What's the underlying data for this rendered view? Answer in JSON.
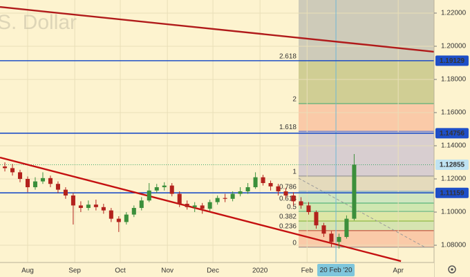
{
  "chart_data": {
    "type": "candlestick",
    "title": "S. Dollar",
    "xlim": [
      -18.2,
      267.6
    ],
    "ylim": [
      1.0696,
      1.2279
    ],
    "xticks": [
      {
        "value": 0,
        "label": "Aug"
      },
      {
        "value": 31,
        "label": "Sep"
      },
      {
        "value": 61,
        "label": "Oct"
      },
      {
        "value": 92,
        "label": "Nov"
      },
      {
        "value": 122,
        "label": "Dec"
      },
      {
        "value": 153,
        "label": "2020"
      },
      {
        "value": 184,
        "label": "Feb"
      },
      {
        "value": 244,
        "label": "Apr"
      }
    ],
    "yticks": [
      {
        "value": 1.22,
        "label": "1.22000"
      },
      {
        "value": 1.2,
        "label": "1.20000"
      },
      {
        "value": 1.18,
        "label": "1.18000"
      },
      {
        "value": 1.16,
        "label": "1.16000"
      },
      {
        "value": 1.14,
        "label": "1.14000"
      },
      {
        "value": 1.12,
        "label": "1.12000"
      },
      {
        "value": 1.1,
        "label": "1.10000"
      },
      {
        "value": 1.08,
        "label": "1.08000"
      }
    ],
    "up_color": "#3b8f3b",
    "down_color": "#b3221d",
    "x": [
      -15,
      -10,
      -5,
      0,
      5,
      10,
      15,
      20,
      25,
      30,
      35,
      40,
      45,
      50,
      55,
      60,
      65,
      70,
      75,
      80,
      85,
      90,
      95,
      100,
      105,
      110,
      115,
      120,
      125,
      130,
      135,
      140,
      145,
      150,
      155,
      160,
      165,
      170,
      175,
      180,
      185,
      190,
      195,
      200,
      205,
      210,
      215
    ],
    "open": [
      1.1275,
      1.1265,
      1.124,
      1.12,
      1.115,
      1.1185,
      1.1205,
      1.117,
      1.1135,
      1.11,
      1.104,
      1.1025,
      1.1045,
      1.103,
      1.101,
      1.096,
      1.094,
      1.0985,
      1.1025,
      1.107,
      1.113,
      1.115,
      1.116,
      1.111,
      1.105,
      1.103,
      1.104,
      1.102,
      1.106,
      1.1085,
      1.108,
      1.111,
      1.1125,
      1.115,
      1.121,
      1.1175,
      1.1155,
      1.1125,
      1.11,
      1.1065,
      1.104,
      1.1,
      1.092,
      1.087,
      1.082,
      1.085,
      1.096
    ],
    "high": [
      1.13,
      1.129,
      1.1255,
      1.1215,
      1.121,
      1.124,
      1.122,
      1.1185,
      1.115,
      1.1115,
      1.1065,
      1.107,
      1.1075,
      1.105,
      1.1025,
      1.0975,
      1.1,
      1.104,
      1.109,
      1.1175,
      1.117,
      1.118,
      1.1175,
      1.1125,
      1.107,
      1.106,
      1.1055,
      1.1075,
      1.11,
      1.111,
      1.1125,
      1.115,
      1.1175,
      1.124,
      1.1225,
      1.119,
      1.117,
      1.1145,
      1.112,
      1.109,
      1.106,
      1.101,
      1.0935,
      1.0885,
      1.087,
      1.098,
      1.135
    ],
    "low": [
      1.1245,
      1.122,
      1.118,
      1.112,
      1.1135,
      1.117,
      1.115,
      1.1115,
      1.108,
      1.0925,
      1.1,
      1.101,
      1.101,
      1.099,
      1.094,
      1.088,
      1.0925,
      1.097,
      1.101,
      1.106,
      1.1115,
      1.113,
      1.1095,
      1.103,
      1.1015,
      1.1,
      1.099,
      1.1005,
      1.1045,
      1.106,
      1.1065,
      1.1095,
      1.111,
      1.114,
      1.116,
      1.113,
      1.11,
      1.1085,
      1.104,
      1.102,
      1.0985,
      1.09,
      1.085,
      1.079,
      1.078,
      1.084,
      1.095
    ],
    "close": [
      1.1265,
      1.124,
      1.12,
      1.115,
      1.1185,
      1.1205,
      1.117,
      1.1135,
      1.11,
      1.104,
      1.1025,
      1.1045,
      1.103,
      1.101,
      1.096,
      1.094,
      1.0985,
      1.1025,
      1.107,
      1.113,
      1.115,
      1.116,
      1.111,
      1.105,
      1.103,
      1.104,
      1.102,
      1.106,
      1.1085,
      1.108,
      1.111,
      1.1125,
      1.115,
      1.121,
      1.1175,
      1.1155,
      1.1125,
      1.11,
      1.1065,
      1.104,
      1.1,
      1.092,
      1.087,
      1.082,
      1.085,
      1.096,
      1.1286
    ],
    "trendlines": [
      {
        "color": "#b01a1a",
        "x": [
          -18.2,
          267.6
        ],
        "y": [
          1.2237,
          1.1967
        ]
      },
      {
        "color": "#c41010",
        "x": [
          -18.2,
          245.8
        ],
        "y": [
          1.1329,
          1.0704
        ]
      }
    ],
    "hlines": [
      1.19129,
      1.14756,
      1.11159
    ],
    "hline_color": "#1e4fc7",
    "last_price": 1.12855,
    "last_price_color": "#3aa86b",
    "crosshair": {
      "x": 203,
      "label": "20 Feb '20"
    },
    "fib": {
      "x_start": 178.4,
      "top_fill": "rgba(130,140,150,0.38)",
      "levels": [
        {
          "level": 2.618,
          "price": 1.1913,
          "color": "#b0413e",
          "fill": "rgba(140,150,60,0.40)"
        },
        {
          "level": 2,
          "price": 1.1654,
          "color": "#3aa86b",
          "fill": "rgba(245,140,110,0.40)"
        },
        {
          "level": 1.618,
          "price": 1.1487,
          "color": "#3d5fd0",
          "fill": "rgba(160,150,210,0.40)"
        },
        {
          "level": 1,
          "price": 1.1217,
          "color": "#8a8a8a",
          "fill": "rgba(190,180,160,0.40)"
        },
        {
          "level": 0.786,
          "price": 1.1125,
          "color": "#6fa0c8",
          "fill": "rgba(140,210,170,0.40)"
        },
        {
          "level": 0.618,
          "price": 1.1054,
          "color": "#3aa86b",
          "fill": "rgba(120,210,120,0.35)"
        },
        {
          "level": 0.5,
          "price": 1.1004,
          "color": "#3aa86b",
          "fill": "rgba(160,210,90,0.35)"
        },
        {
          "level": 0.382,
          "price": 1.0946,
          "color": "#7fae2a",
          "fill": "rgba(140,200,120,0.35)"
        },
        {
          "level": 0.236,
          "price": 1.0888,
          "color": "#c0392b",
          "fill": "rgba(245,140,110,0.40)"
        },
        {
          "level": 0,
          "price": 1.0788,
          "color": "#8a8a8a",
          "fill": "none"
        }
      ]
    }
  }
}
